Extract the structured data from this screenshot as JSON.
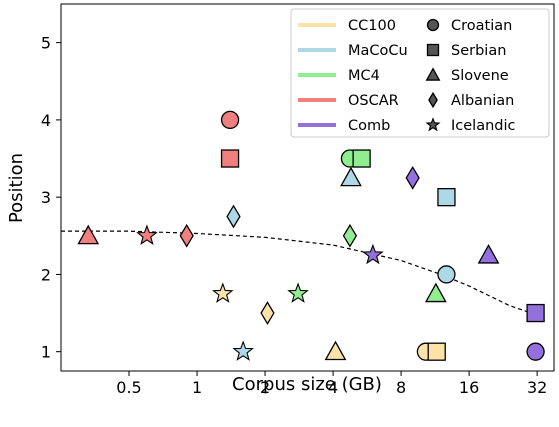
{
  "chart_data": {
    "type": "scatter",
    "xlabel": "Corpus size (GB)",
    "ylabel": "Position",
    "x_scale": "log2",
    "xlim": [
      0.25,
      38
    ],
    "ylim": [
      0.75,
      5.5
    ],
    "xticks": [
      0.5,
      1,
      2,
      4,
      8,
      16,
      32
    ],
    "xtick_labels": [
      "0.5",
      "1",
      "2",
      "4",
      "8",
      "16",
      "32"
    ],
    "yticks": [
      1,
      2,
      3,
      4,
      5
    ],
    "ytick_labels": [
      "1",
      "2",
      "3",
      "4",
      "5"
    ],
    "grid": false,
    "legend_position": "top-right",
    "corpora": [
      {
        "name": "CC100",
        "color": "#fde3a7"
      },
      {
        "name": "MaCoCu",
        "color": "#add8e6"
      },
      {
        "name": "MC4",
        "color": "#90ee90"
      },
      {
        "name": "OSCAR",
        "color": "#f08080"
      },
      {
        "name": "Comb",
        "color": "#9370db"
      }
    ],
    "languages": [
      {
        "name": "Croatian",
        "marker": "circle"
      },
      {
        "name": "Serbian",
        "marker": "square"
      },
      {
        "name": "Slovene",
        "marker": "triangle"
      },
      {
        "name": "Albanian",
        "marker": "diamond"
      },
      {
        "name": "Icelandic",
        "marker": "star"
      }
    ],
    "points": [
      {
        "corpus": "OSCAR",
        "language": "Croatian",
        "x": 1.4,
        "y": 4.0
      },
      {
        "corpus": "OSCAR",
        "language": "Serbian",
        "x": 1.4,
        "y": 3.5
      },
      {
        "corpus": "OSCAR",
        "language": "Slovene",
        "x": 0.33,
        "y": 2.5
      },
      {
        "corpus": "OSCAR",
        "language": "Albanian",
        "x": 0.9,
        "y": 2.5
      },
      {
        "corpus": "OSCAR",
        "language": "Icelandic",
        "x": 0.6,
        "y": 2.5
      },
      {
        "corpus": "MaCoCu",
        "language": "Croatian",
        "x": 12.7,
        "y": 2.0
      },
      {
        "corpus": "MaCoCu",
        "language": "Serbian",
        "x": 12.7,
        "y": 3.0
      },
      {
        "corpus": "MaCoCu",
        "language": "Slovene",
        "x": 4.8,
        "y": 3.25
      },
      {
        "corpus": "MaCoCu",
        "language": "Albanian",
        "x": 1.45,
        "y": 2.75
      },
      {
        "corpus": "MaCoCu",
        "language": "Icelandic",
        "x": 1.6,
        "y": 1.0
      },
      {
        "corpus": "MC4",
        "language": "Croatian",
        "x": 4.75,
        "y": 3.5
      },
      {
        "corpus": "MC4",
        "language": "Serbian",
        "x": 5.35,
        "y": 3.5
      },
      {
        "corpus": "MC4",
        "language": "Slovene",
        "x": 11.4,
        "y": 1.75
      },
      {
        "corpus": "MC4",
        "language": "Albanian",
        "x": 4.75,
        "y": 2.5
      },
      {
        "corpus": "MC4",
        "language": "Icelandic",
        "x": 2.8,
        "y": 1.75
      },
      {
        "corpus": "CC100",
        "language": "Croatian",
        "x": 10.3,
        "y": 1.0
      },
      {
        "corpus": "CC100",
        "language": "Serbian",
        "x": 11.5,
        "y": 1.0
      },
      {
        "corpus": "CC100",
        "language": "Slovene",
        "x": 4.1,
        "y": 1.0
      },
      {
        "corpus": "CC100",
        "language": "Albanian",
        "x": 2.05,
        "y": 1.5
      },
      {
        "corpus": "CC100",
        "language": "Icelandic",
        "x": 1.3,
        "y": 1.75
      },
      {
        "corpus": "Comb",
        "language": "Croatian",
        "x": 31.5,
        "y": 1.0
      },
      {
        "corpus": "Comb",
        "language": "Serbian",
        "x": 31.5,
        "y": 1.5
      },
      {
        "corpus": "Comb",
        "language": "Slovene",
        "x": 19.5,
        "y": 2.25
      },
      {
        "corpus": "Comb",
        "language": "Albanian",
        "x": 9.0,
        "y": 3.25
      },
      {
        "corpus": "Comb",
        "language": "Icelandic",
        "x": 6.0,
        "y": 2.25
      }
    ],
    "trend_line": {
      "style": "dashed",
      "color": "#000000",
      "points": [
        [
          0.25,
          2.56
        ],
        [
          0.5,
          2.56
        ],
        [
          1,
          2.53
        ],
        [
          2,
          2.48
        ],
        [
          4,
          2.38
        ],
        [
          8,
          2.18
        ],
        [
          12,
          2.0
        ],
        [
          16,
          1.85
        ],
        [
          24,
          1.6
        ],
        [
          31.5,
          1.48
        ]
      ]
    }
  }
}
